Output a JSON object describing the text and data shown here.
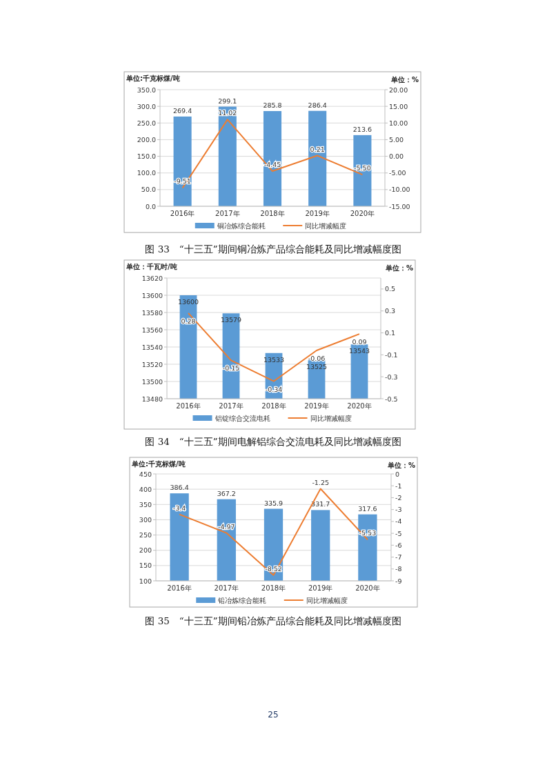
{
  "chart_data": [
    {
      "type": "bar",
      "title": "图 33　“十三五”期间铜冶炼产品综合能耗及同比增减幅度图",
      "ylabel": "单位:千克标煤/吨",
      "y2label": "单位：%",
      "categories": [
        "2016年",
        "2017年",
        "2018年",
        "2019年",
        "2020年"
      ],
      "series": [
        {
          "name": "铜冶炼综合能耗",
          "color": "#5b9bd5",
          "values": [
            269.4,
            299.1,
            285.8,
            286.4,
            213.6
          ]
        },
        {
          "name": "同比增减幅度",
          "type": "line",
          "axis": "y2",
          "color": "#ed7d31",
          "values": [
            -9.51,
            11.02,
            -4.45,
            0.21,
            -5.5
          ],
          "value_labels": [
            "-9.51",
            "11.02",
            "-4.45",
            "0.21",
            "-5.50"
          ]
        }
      ],
      "ylim": [
        0,
        350
      ],
      "yticks": [
        {
          "value": 0,
          "label": "0.0"
        },
        {
          "value": 50,
          "label": "50.0"
        },
        {
          "value": 100,
          "label": "100.0"
        },
        {
          "value": 150,
          "label": "150.0"
        },
        {
          "value": 200,
          "label": "200.0"
        },
        {
          "value": 250,
          "label": "250.0"
        },
        {
          "value": 300,
          "label": "300.0"
        },
        {
          "value": 350,
          "label": "350.0"
        }
      ],
      "y2lim": [
        -15,
        20
      ],
      "y2ticks": [
        {
          "value": -15,
          "label": "-15.00"
        },
        {
          "value": -10,
          "label": "-10.00"
        },
        {
          "value": -5,
          "label": "-5.00"
        },
        {
          "value": 0,
          "label": "0.00"
        },
        {
          "value": 5,
          "label": "5.00"
        },
        {
          "value": 10,
          "label": "10.00"
        },
        {
          "value": 15,
          "label": "15.00"
        },
        {
          "value": 20,
          "label": "20.00"
        }
      ],
      "grid": "y",
      "legend": "bottom",
      "data_labels": true
    },
    {
      "type": "bar",
      "title": "图 34　“十三五”期间电解铝综合交流电耗及同比增减幅度图",
      "ylabel": "单位：千瓦时/吨",
      "y2label": "单位：%",
      "categories": [
        "2016年",
        "2017年",
        "2018年",
        "2019年",
        "2020年"
      ],
      "series": [
        {
          "name": "铝锭综合交流电耗",
          "color": "#5b9bd5",
          "values": [
            13600,
            13579,
            13533,
            13525,
            13543
          ]
        },
        {
          "name": "同比增减幅度",
          "type": "line",
          "axis": "y2",
          "color": "#ed7d31",
          "values": [
            0.28,
            -0.15,
            -0.34,
            -0.06,
            0.09
          ]
        }
      ],
      "ylim": [
        13480,
        13620
      ],
      "yticks": [
        13480,
        13500,
        13520,
        13540,
        13560,
        13580,
        13600,
        13620
      ],
      "y2lim": [
        -0.5,
        0.6
      ],
      "y2ticks": [
        -0.5,
        -0.3,
        -0.1,
        0.1,
        0.3,
        0.5
      ],
      "grid": "y",
      "legend": "bottom",
      "data_labels": true
    },
    {
      "type": "bar",
      "title": "图 35　“十三五”期间铅冶炼产品综合能耗及同比增减幅度图",
      "ylabel": "单位:千克标煤/吨",
      "y2label": "单位：%",
      "categories": [
        "2016年",
        "2017年",
        "2018年",
        "2019年",
        "2020年"
      ],
      "series": [
        {
          "name": "铅冶炼综合能耗",
          "color": "#5b9bd5",
          "values": [
            386.4,
            367.2,
            335.9,
            331.7,
            317.6
          ]
        },
        {
          "name": "同比增减幅度",
          "type": "line",
          "axis": "y2",
          "color": "#ed7d31",
          "values": [
            -3.4,
            -4.97,
            -8.52,
            -1.25,
            -5.53
          ]
        }
      ],
      "ylim": [
        100,
        450
      ],
      "yticks": [
        100,
        150,
        200,
        250,
        300,
        350,
        400,
        450
      ],
      "y2lim": [
        -9,
        0
      ],
      "y2ticks": [
        -9,
        -8,
        -7,
        -6,
        -5,
        -4,
        -3,
        -2,
        -1,
        0
      ],
      "grid": "y",
      "legend": "bottom",
      "data_labels": true,
      "annotations": [
        "25"
      ]
    }
  ]
}
